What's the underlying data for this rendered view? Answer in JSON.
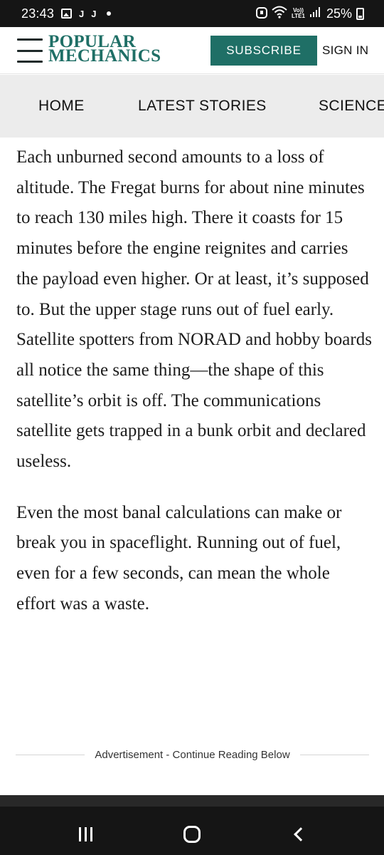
{
  "status_bar": {
    "time": "23:43",
    "notification_icons": [
      "image-icon",
      "j-icon",
      "j-icon",
      "dot"
    ],
    "right_icons": [
      "alarm-icon",
      "wifi-icon",
      "volte-icon",
      "signal-icon"
    ],
    "volte_top": "Vo))",
    "volte_bottom": "LTE1",
    "battery": "25%"
  },
  "header": {
    "logo_line1": "POPULAR",
    "logo_line2": "MECHANICS",
    "brand_color": "#1f6f66",
    "subscribe_label": "SUBSCRIBE",
    "signin_label": "SIGN IN"
  },
  "nav": {
    "items": [
      "HOME",
      "LATEST STORIES",
      "SCIENCE"
    ]
  },
  "article": {
    "paragraphs": [
      "Each unburned second amounts to a loss of altitude. The Fregat burns for about nine minutes to reach 130 miles high. There it coasts for 15 minutes before the engine reignites and carries the payload even higher. Or at least, it’s supposed to. But the upper stage runs out of fuel early. Satellite spotters from NORAD and hobby boards all notice the same thing—the shape of this satellite’s orbit is off. The communications satellite gets trapped in a bunk orbit and declared useless.",
      "Even the most banal calculations can make or break you in spaceflight. Running out of fuel, even for a few seconds, can mean the whole effort was a waste."
    ]
  },
  "advertisement": {
    "label": "Advertisement - Continue Reading Below"
  },
  "android_nav": {
    "buttons": [
      "recents-icon",
      "home-icon",
      "back-icon"
    ]
  }
}
